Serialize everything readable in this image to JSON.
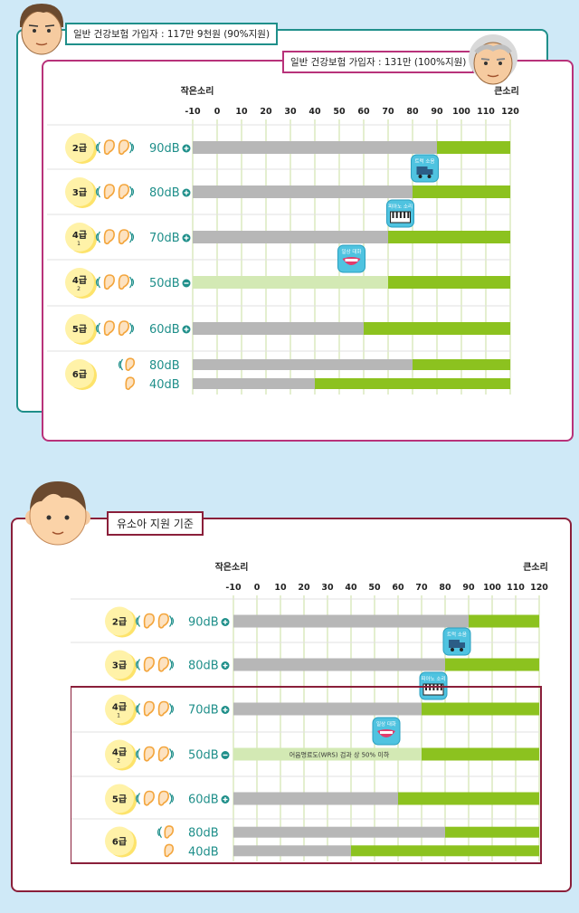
{
  "colors": {
    "gray": "#b7b7b7",
    "green": "#8cc21f",
    "light_green": "#d3e9b4",
    "teal": "#1f8f8a",
    "magenta": "#b8327a",
    "maroon": "#8a1f3a",
    "grade_circle": "#fff2a8",
    "grade_shadow": "#fde36b",
    "ear": "#f3a53c",
    "grid": "#c9df9f"
  },
  "section1": {
    "tag_outer": "일반 건강보험 가입자 : 117만 9천원 (90%지원)",
    "tag_inner": "일반 건강보험 가입자 : 131만 (100%지원)"
  },
  "section2": {
    "tag": "유소아 지원 기준"
  },
  "axis_labels": {
    "left": "작은소리",
    "right": "큰소리"
  },
  "ticks": [
    "-10",
    "0",
    "10",
    "20",
    "30",
    "40",
    "50",
    "60",
    "70",
    "80",
    "90",
    "100",
    "110",
    "120"
  ],
  "markers": {
    "truck": "트럭 소음",
    "piano": "피아노 소리",
    "talk": "일상 대화"
  },
  "wrs_note": "어음명료도(WRS) 검과 상 50% 이하",
  "chart_data": [
    {
      "type": "bar",
      "title": "",
      "x_range": [
        -10,
        120
      ],
      "rows": [
        {
          "grade": "2급",
          "sub": "",
          "value": "90dB",
          "sign": "plus",
          "bars": [
            90
          ]
        },
        {
          "grade": "3급",
          "sub": "",
          "value": "80dB",
          "sign": "plus",
          "bars": [
            80
          ]
        },
        {
          "grade": "4급",
          "sub": "1",
          "value": "70dB",
          "sign": "plus",
          "bars": [
            70
          ]
        },
        {
          "grade": "4급",
          "sub": "2",
          "value": "50dB",
          "sign": "minus",
          "bars": [
            70
          ],
          "light": true
        },
        {
          "grade": "5급",
          "sub": "",
          "value": "60dB",
          "sign": "plus",
          "bars": [
            60
          ]
        },
        {
          "grade": "6급",
          "sub": "",
          "value": "80dB",
          "sign": "",
          "value2": "40dB",
          "bars": [
            80,
            40
          ]
        }
      ],
      "markers": [
        {
          "label": "트럭 소음",
          "x": 85
        },
        {
          "label": "피아노 소리",
          "x": 75
        },
        {
          "label": "일상 대화",
          "x": 55
        }
      ]
    },
    {
      "type": "bar",
      "title": "",
      "x_range": [
        -10,
        120
      ],
      "rows": [
        {
          "grade": "2급",
          "sub": "",
          "value": "90dB",
          "sign": "plus",
          "bars": [
            90
          ]
        },
        {
          "grade": "3급",
          "sub": "",
          "value": "80dB",
          "sign": "plus",
          "bars": [
            80
          ]
        },
        {
          "grade": "4급",
          "sub": "1",
          "value": "70dB",
          "sign": "plus",
          "bars": [
            70
          ]
        },
        {
          "grade": "4급",
          "sub": "2",
          "value": "50dB",
          "sign": "minus",
          "bars": [
            70
          ],
          "light": true,
          "note": true
        },
        {
          "grade": "5급",
          "sub": "",
          "value": "60dB",
          "sign": "plus",
          "bars": [
            60
          ]
        },
        {
          "grade": "6급",
          "sub": "",
          "value": "80dB",
          "sign": "",
          "value2": "40dB",
          "bars": [
            80,
            40
          ]
        }
      ],
      "markers": [
        {
          "label": "트럭 소음",
          "x": 85
        },
        {
          "label": "피아노 소리",
          "x": 75
        },
        {
          "label": "일상 대화",
          "x": 55
        }
      ]
    }
  ]
}
